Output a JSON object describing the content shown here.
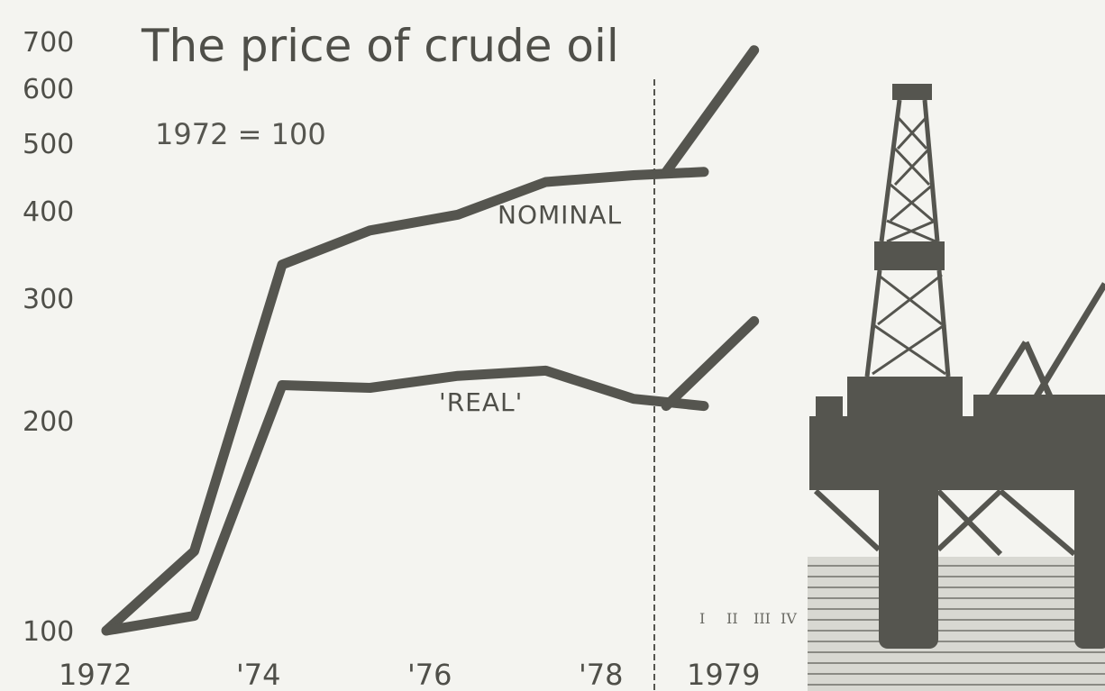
{
  "chart_data": {
    "type": "line",
    "title": "The price of crude oil",
    "subtitle": "1972 = 100",
    "y_scale": "log",
    "ylim": [
      100,
      700
    ],
    "yticks": [
      100,
      200,
      300,
      400,
      500,
      600,
      700
    ],
    "x_tick_labels": [
      "1972",
      "'74",
      "'76",
      "'78",
      "1979"
    ],
    "quarter_labels": [
      "I",
      "II",
      "III",
      "IV"
    ],
    "grid": false,
    "series": [
      {
        "name": "NOMINAL",
        "x": [
          1972.0,
          1973.0,
          1974.0,
          1975.0,
          1976.0,
          1977.0,
          1978.0,
          1978.8
        ],
        "values": [
          100,
          130,
          335,
          375,
          395,
          440,
          450,
          455
        ],
        "extension_1979": {
          "x": [
            0.05,
            0.85
          ],
          "values": [
            455,
            680
          ]
        }
      },
      {
        "name": "'REAL'",
        "x": [
          1972.0,
          1973.0,
          1974.0,
          1975.0,
          1976.0,
          1977.0,
          1978.0,
          1978.8
        ],
        "values": [
          100,
          105,
          225,
          223,
          232,
          236,
          215,
          210
        ],
        "extension_1979": {
          "x": [
            0.05,
            0.85
          ],
          "values": [
            210,
            278
          ]
        }
      }
    ]
  },
  "colors": {
    "ink": "#55554f",
    "paper": "#f4f4f0"
  }
}
